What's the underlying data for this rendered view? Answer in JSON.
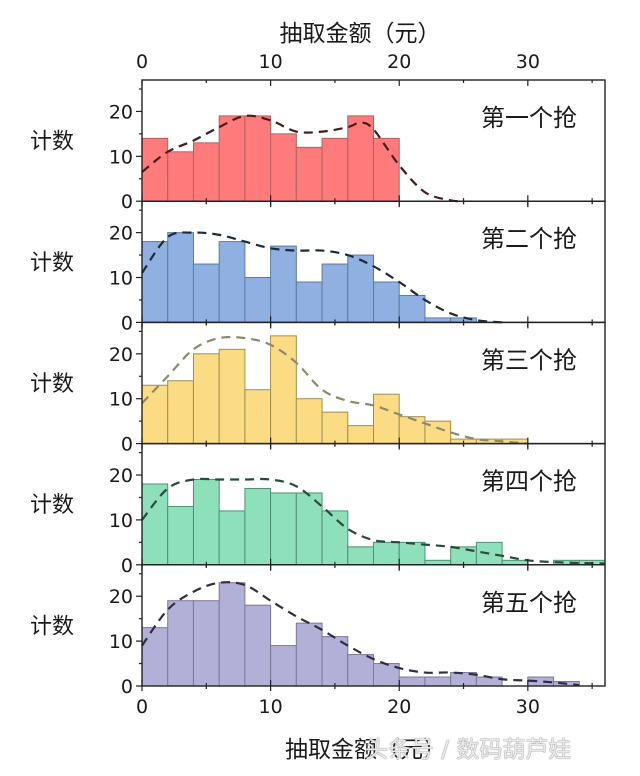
{
  "figure": {
    "top_xlabel": "抽取金额（元）",
    "bottom_xlabel": "抽取金额（元）",
    "ylabel": "计数",
    "watermark": "头条号 / 数码葫芦娃"
  },
  "chart_data": [
    {
      "type": "bar",
      "title": "第一个抢",
      "xlabel": "抽取金额（元）",
      "ylabel": "计数",
      "bin_width": 2,
      "bin_starts": [
        0,
        2,
        4,
        6,
        8,
        10,
        12,
        14,
        16,
        18
      ],
      "values": [
        14,
        11,
        13,
        19,
        19,
        15,
        12,
        14,
        19,
        14
      ],
      "fit_curve": [
        [
          0,
          6.5
        ],
        [
          2,
          11
        ],
        [
          4,
          13.5
        ],
        [
          6,
          16.5
        ],
        [
          8,
          19
        ],
        [
          10,
          18
        ],
        [
          12,
          15.5
        ],
        [
          14,
          15.5
        ],
        [
          16,
          16.5
        ],
        [
          17,
          17.5
        ],
        [
          18,
          16
        ],
        [
          20,
          8
        ],
        [
          22,
          2
        ],
        [
          24,
          0.2
        ],
        [
          25,
          0
        ]
      ],
      "color": "#ff7b7b",
      "edge_color": "#b06060",
      "curve_color": "#4a1a1a",
      "xlim": [
        0,
        36
      ],
      "ylim": [
        0,
        27
      ],
      "xticks": [
        0,
        10,
        20,
        30
      ],
      "yticks": [
        0,
        10,
        20
      ]
    },
    {
      "type": "bar",
      "title": "第二个抢",
      "xlabel": "抽取金额（元）",
      "ylabel": "计数",
      "bin_width": 2,
      "bin_starts": [
        0,
        2,
        4,
        6,
        8,
        10,
        12,
        14,
        16,
        18,
        20,
        22,
        24
      ],
      "values": [
        18,
        20,
        13,
        18,
        10,
        17,
        9,
        13,
        15,
        9,
        6,
        1,
        1
      ],
      "fit_curve": [
        [
          0,
          11
        ],
        [
          2,
          19
        ],
        [
          4,
          20
        ],
        [
          6,
          19.5
        ],
        [
          8,
          18
        ],
        [
          10,
          16.5
        ],
        [
          12,
          16
        ],
        [
          14,
          16
        ],
        [
          16,
          15
        ],
        [
          18,
          12.5
        ],
        [
          20,
          9
        ],
        [
          22,
          5
        ],
        [
          24,
          2
        ],
        [
          26,
          0.5
        ],
        [
          28,
          0
        ]
      ],
      "color": "#8fb0e0",
      "edge_color": "#5d7aa6",
      "curve_color": "#1e2a3a",
      "xlim": [
        0,
        36
      ],
      "ylim": [
        0,
        27
      ],
      "xticks": [
        0,
        10,
        20,
        30
      ],
      "yticks": [
        0,
        10,
        20
      ]
    },
    {
      "type": "bar",
      "title": "第三个抢",
      "xlabel": "抽取金额（元）",
      "ylabel": "计数",
      "bin_width": 2,
      "bin_starts": [
        0,
        2,
        4,
        6,
        8,
        10,
        12,
        14,
        16,
        18,
        20,
        22,
        24,
        26,
        28
      ],
      "values": [
        13,
        14,
        20,
        21,
        12,
        24,
        10,
        7,
        4,
        11,
        6,
        5,
        1,
        1,
        1
      ],
      "fit_curve": [
        [
          0,
          9
        ],
        [
          2,
          15
        ],
        [
          4,
          21
        ],
        [
          6,
          23.5
        ],
        [
          8,
          23.5
        ],
        [
          10,
          22
        ],
        [
          12,
          18
        ],
        [
          14,
          12
        ],
        [
          16,
          9.5
        ],
        [
          18,
          8.5
        ],
        [
          20,
          6.5
        ],
        [
          22,
          4.5
        ],
        [
          24,
          2.5
        ],
        [
          26,
          1
        ],
        [
          28,
          0.5
        ],
        [
          30,
          0
        ]
      ],
      "color": "#fbdc84",
      "edge_color": "#a09050",
      "curve_color": "#8a8a6a",
      "xlim": [
        0,
        36
      ],
      "ylim": [
        0,
        27
      ],
      "xticks": [
        0,
        10,
        20,
        30
      ],
      "yticks": [
        0,
        10,
        20
      ]
    },
    {
      "type": "bar",
      "title": "第四个抢",
      "xlabel": "抽取金额（元）",
      "ylabel": "计数",
      "bin_width": 2,
      "bin_starts": [
        0,
        2,
        4,
        6,
        8,
        10,
        12,
        14,
        16,
        18,
        20,
        22,
        24,
        26,
        28,
        30,
        32,
        34
      ],
      "values": [
        18,
        13,
        19,
        12,
        17,
        16,
        16,
        12,
        4,
        5,
        5,
        1,
        4,
        5,
        1,
        0,
        1,
        1
      ],
      "fit_curve": [
        [
          0,
          10
        ],
        [
          2,
          17
        ],
        [
          4,
          19
        ],
        [
          6,
          19
        ],
        [
          8,
          19
        ],
        [
          10,
          19
        ],
        [
          12,
          17.5
        ],
        [
          14,
          13
        ],
        [
          16,
          8
        ],
        [
          18,
          5.5
        ],
        [
          20,
          5
        ],
        [
          22,
          4.5
        ],
        [
          24,
          4
        ],
        [
          26,
          3
        ],
        [
          28,
          2
        ],
        [
          30,
          1
        ],
        [
          32,
          0.6
        ],
        [
          34,
          0.4
        ],
        [
          36,
          0.3
        ]
      ],
      "color": "#8ee0bb",
      "edge_color": "#4f8f73",
      "curve_color": "#2b4a3e",
      "xlim": [
        0,
        36
      ],
      "ylim": [
        0,
        27
      ],
      "xticks": [
        0,
        10,
        20,
        30
      ],
      "yticks": [
        0,
        10,
        20
      ]
    },
    {
      "type": "bar",
      "title": "第五个抢",
      "xlabel": "抽取金额（元）",
      "ylabel": "计数",
      "bin_width": 2,
      "bin_starts": [
        0,
        2,
        4,
        6,
        8,
        10,
        12,
        14,
        16,
        18,
        20,
        22,
        24,
        26,
        28,
        30,
        32,
        34
      ],
      "values": [
        13,
        19,
        19,
        23,
        18,
        9,
        14,
        11,
        7,
        5,
        2,
        2,
        3,
        2,
        0,
        2,
        1,
        0
      ],
      "fit_curve": [
        [
          0,
          9
        ],
        [
          2,
          17
        ],
        [
          4,
          21
        ],
        [
          6,
          23
        ],
        [
          8,
          22.5
        ],
        [
          10,
          19
        ],
        [
          12,
          15.5
        ],
        [
          14,
          12.5
        ],
        [
          16,
          9
        ],
        [
          18,
          6
        ],
        [
          20,
          4
        ],
        [
          22,
          3
        ],
        [
          24,
          3
        ],
        [
          26,
          2.5
        ],
        [
          28,
          1.5
        ],
        [
          30,
          1.2
        ],
        [
          32,
          0.8
        ],
        [
          34,
          0.2
        ]
      ],
      "color": "#b3b0d8",
      "edge_color": "#7a7896",
      "curve_color": "#2e2e3e",
      "xlim": [
        0,
        36
      ],
      "ylim": [
        0,
        27
      ],
      "xticks": [
        0,
        10,
        20,
        30
      ],
      "yticks": [
        0,
        10,
        20
      ]
    }
  ]
}
